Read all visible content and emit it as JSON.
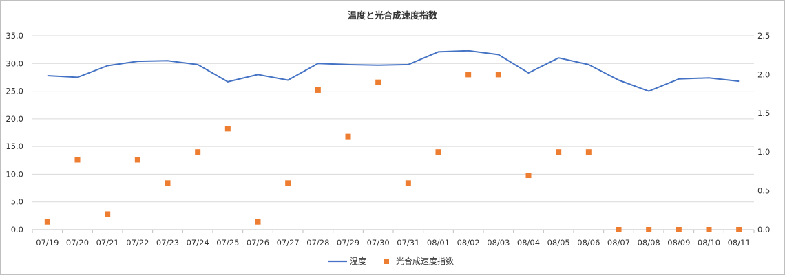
{
  "chart_data": {
    "type": "line",
    "title": "温度と光合成速度指数",
    "xlabel": "",
    "ylabel": "",
    "categories": [
      "07/19",
      "07/20",
      "07/21",
      "07/22",
      "07/23",
      "07/24",
      "07/25",
      "07/26",
      "07/27",
      "07/28",
      "07/29",
      "07/30",
      "07/31",
      "08/01",
      "08/02",
      "08/03",
      "08/04",
      "08/05",
      "08/06",
      "08/07",
      "08/08",
      "08/09",
      "08/10",
      "08/11"
    ],
    "ylim": [
      0,
      35
    ],
    "y_ticks": [
      "0.0",
      "5.0",
      "10.0",
      "15.0",
      "20.0",
      "25.0",
      "30.0",
      "35.0"
    ],
    "y2lim": [
      0,
      2.5
    ],
    "y2_ticks": [
      "0.0",
      "0.5",
      "1.0",
      "1.5",
      "2.0",
      "2.5"
    ],
    "grid": true,
    "legend_position": "bottom",
    "series": [
      {
        "name": "温度",
        "type": "line",
        "axis": "left",
        "color": "#4472C4",
        "values": [
          27.8,
          27.5,
          29.6,
          30.4,
          30.5,
          29.8,
          26.7,
          28.0,
          27.0,
          30.0,
          29.8,
          29.7,
          29.8,
          32.1,
          32.3,
          31.6,
          28.3,
          31.0,
          29.8,
          27.0,
          25.0,
          27.2,
          27.4,
          26.8
        ]
      },
      {
        "name": "光合成速度指数",
        "type": "scatter",
        "axis": "right",
        "color": "#ED7D31",
        "values": [
          0.1,
          0.9,
          0.2,
          0.9,
          0.6,
          1.0,
          1.3,
          0.1,
          0.6,
          1.8,
          1.2,
          1.9,
          0.6,
          1.0,
          2.0,
          2.0,
          0.7,
          1.0,
          1.0,
          0.0,
          0.0,
          0.0,
          0.0,
          0.0
        ]
      }
    ]
  }
}
